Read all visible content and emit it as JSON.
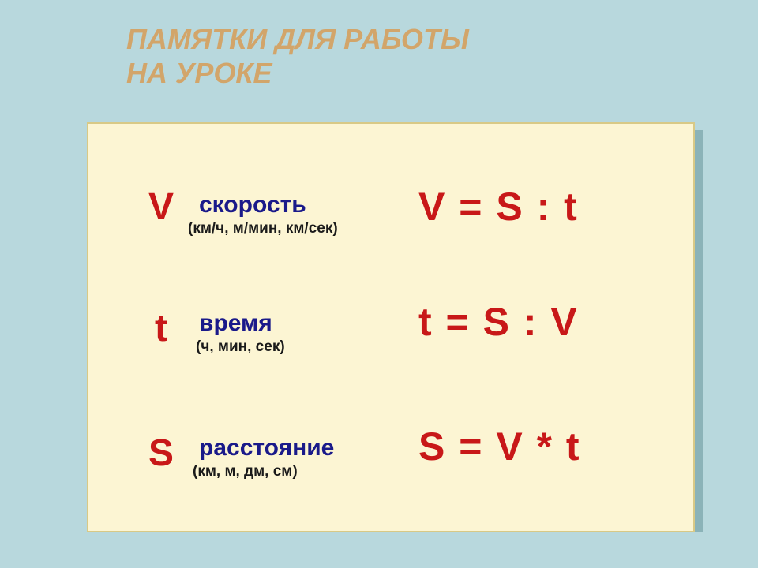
{
  "title_line1": "ПАМЯТКИ ДЛЯ РАБОТЫ",
  "title_line2": "НА УРОКЕ",
  "rows": [
    {
      "symbol": "V",
      "label": "скорость",
      "units": "(км/ч, м/мин, км/сек)",
      "formula": "V = S : t"
    },
    {
      "symbol": "t",
      "label": "время",
      "units": "(ч, мин, сек)",
      "formula": "t = S : V"
    },
    {
      "symbol": "S",
      "label": "расстояние",
      "units": "(км, м, дм, см)",
      "formula": "S = V * t"
    }
  ],
  "styling": {
    "page_background": "#b8d8dd",
    "card_background": "#fcf5d3",
    "card_border": "#d8c986",
    "card_shadow": "#8bb3b8",
    "title_color": "#d2a56a",
    "title_fontsize": 36,
    "symbol_color": "#c81818",
    "symbol_fontsize": 48,
    "label_color": "#1a1a8a",
    "label_fontsize": 30,
    "units_color": "#1a1a1a",
    "units_fontsize": 19,
    "formula_color": "#c81818",
    "formula_fontsize": 50
  }
}
